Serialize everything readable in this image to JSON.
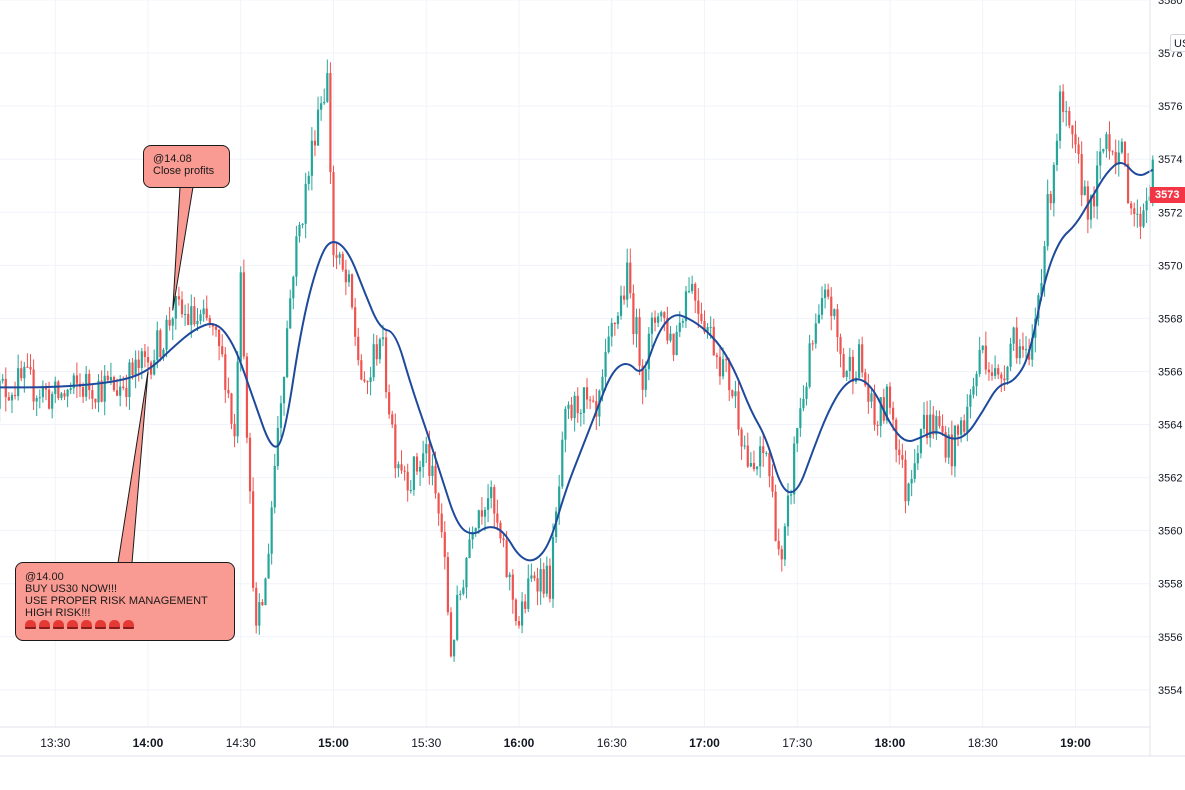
{
  "chart_data": {
    "type": "candlestick",
    "x_ticks": [
      {
        "label": "13:30",
        "major": false
      },
      {
        "label": "14:00",
        "major": true
      },
      {
        "label": "14:30",
        "major": false
      },
      {
        "label": "15:00",
        "major": true
      },
      {
        "label": "15:30",
        "major": false
      },
      {
        "label": "16:00",
        "major": true
      },
      {
        "label": "16:30",
        "major": false
      },
      {
        "label": "17:00",
        "major": true
      },
      {
        "label": "17:30",
        "major": false
      },
      {
        "label": "18:00",
        "major": true
      },
      {
        "label": "18:30",
        "major": false
      },
      {
        "label": "19:00",
        "major": true
      }
    ],
    "y_ticks": [
      "3554",
      "3556",
      "3558",
      "3560",
      "3562",
      "3564",
      "3566",
      "3568",
      "3570",
      "3572",
      "3574",
      "3576",
      "3578",
      "3580"
    ],
    "ylim": [
      3552.6,
      3580
    ],
    "x_range": [
      "13:10",
      "19:25"
    ],
    "price_path": [
      [
        "13:10",
        3565.2
      ],
      [
        "13:20",
        3565.6
      ],
      [
        "13:30",
        3565.0
      ],
      [
        "13:40",
        3565.5
      ],
      [
        "13:50",
        3565.4
      ],
      [
        "14:00",
        3566.4
      ],
      [
        "14:05",
        3567.3
      ],
      [
        "14:08",
        3568.3
      ],
      [
        "14:15",
        3567.9
      ],
      [
        "14:20",
        3567.7
      ],
      [
        "14:25",
        3566.0
      ],
      [
        "14:28",
        3563.5
      ],
      [
        "14:30",
        3570.2
      ],
      [
        "14:33",
        3561.0
      ],
      [
        "14:35",
        3556.0
      ],
      [
        "14:38",
        3558.0
      ],
      [
        "14:42",
        3564.0
      ],
      [
        "14:47",
        3570.0
      ],
      [
        "14:52",
        3573.5
      ],
      [
        "14:55",
        3576.0
      ],
      [
        "14:58",
        3577.0
      ],
      [
        "15:00",
        3570.5
      ],
      [
        "15:05",
        3569.0
      ],
      [
        "15:10",
        3565.0
      ],
      [
        "15:15",
        3567.5
      ],
      [
        "15:20",
        3563.0
      ],
      [
        "15:25",
        3562.0
      ],
      [
        "15:30",
        3563.0
      ],
      [
        "15:35",
        3560.0
      ],
      [
        "15:38",
        3555.5
      ],
      [
        "15:45",
        3560.5
      ],
      [
        "15:50",
        3561.5
      ],
      [
        "15:55",
        3559.0
      ],
      [
        "16:00",
        3556.5
      ],
      [
        "16:05",
        3558.5
      ],
      [
        "16:10",
        3558.0
      ],
      [
        "16:15",
        3564.0
      ],
      [
        "16:20",
        3565.0
      ],
      [
        "16:25",
        3564.0
      ],
      [
        "16:30",
        3567.5
      ],
      [
        "16:35",
        3569.5
      ],
      [
        "16:40",
        3566.0
      ],
      [
        "16:45",
        3568.5
      ],
      [
        "16:50",
        3567.0
      ],
      [
        "16:55",
        3569.5
      ],
      [
        "17:00",
        3568.0
      ],
      [
        "17:05",
        3566.5
      ],
      [
        "17:10",
        3565.0
      ],
      [
        "17:15",
        3562.0
      ],
      [
        "17:20",
        3563.0
      ],
      [
        "17:25",
        3558.5
      ],
      [
        "17:30",
        3564.0
      ],
      [
        "17:35",
        3567.0
      ],
      [
        "17:40",
        3569.0
      ],
      [
        "17:45",
        3566.0
      ],
      [
        "17:50",
        3566.5
      ],
      [
        "17:55",
        3564.0
      ],
      [
        "18:00",
        3565.0
      ],
      [
        "18:05",
        3561.5
      ],
      [
        "18:10",
        3564.0
      ],
      [
        "18:15",
        3564.0
      ],
      [
        "18:20",
        3563.0
      ],
      [
        "18:25",
        3564.5
      ],
      [
        "18:30",
        3567.0
      ],
      [
        "18:35",
        3565.5
      ],
      [
        "18:40",
        3567.5
      ],
      [
        "18:45",
        3566.0
      ],
      [
        "18:50",
        3571.0
      ],
      [
        "18:55",
        3576.0
      ],
      [
        "19:00",
        3574.0
      ],
      [
        "19:05",
        3572.0
      ],
      [
        "19:10",
        3575.0
      ],
      [
        "19:15",
        3574.0
      ],
      [
        "19:20",
        3571.5
      ],
      [
        "19:25",
        3573.5
      ]
    ],
    "moving_average": {
      "color": "#1e4a9c",
      "points": [
        [
          "13:10",
          3565.4
        ],
        [
          "13:30",
          3565.4
        ],
        [
          "13:50",
          3565.6
        ],
        [
          "14:00",
          3566.0
        ],
        [
          "14:08",
          3566.9
        ],
        [
          "14:15",
          3567.6
        ],
        [
          "14:22",
          3567.9
        ],
        [
          "14:28",
          3567.0
        ],
        [
          "14:34",
          3565.0
        ],
        [
          "14:40",
          3563.0
        ],
        [
          "14:44",
          3563.4
        ],
        [
          "14:50",
          3568.0
        ],
        [
          "14:56",
          3570.5
        ],
        [
          "15:00",
          3571.0
        ],
        [
          "15:05",
          3570.5
        ],
        [
          "15:10",
          3569.0
        ],
        [
          "15:15",
          3567.6
        ],
        [
          "15:20",
          3567.5
        ],
        [
          "15:25",
          3565.5
        ],
        [
          "15:30",
          3563.8
        ],
        [
          "15:35",
          3562.0
        ],
        [
          "15:40",
          3560.2
        ],
        [
          "15:45",
          3559.8
        ],
        [
          "15:50",
          3560.2
        ],
        [
          "15:55",
          3560.0
        ],
        [
          "16:00",
          3559.0
        ],
        [
          "16:05",
          3558.8
        ],
        [
          "16:10",
          3559.5
        ],
        [
          "16:15",
          3561.5
        ],
        [
          "16:20",
          3563.0
        ],
        [
          "16:25",
          3564.5
        ],
        [
          "16:30",
          3566.0
        ],
        [
          "16:35",
          3566.4
        ],
        [
          "16:40",
          3565.8
        ],
        [
          "16:45",
          3567.5
        ],
        [
          "16:50",
          3568.2
        ],
        [
          "16:55",
          3568.0
        ],
        [
          "17:00",
          3567.6
        ],
        [
          "17:05",
          3567.0
        ],
        [
          "17:10",
          3566.0
        ],
        [
          "17:15",
          3564.5
        ],
        [
          "17:20",
          3563.5
        ],
        [
          "17:25",
          3561.5
        ],
        [
          "17:30",
          3561.4
        ],
        [
          "17:35",
          3563.0
        ],
        [
          "17:40",
          3564.5
        ],
        [
          "17:45",
          3565.5
        ],
        [
          "17:50",
          3565.8
        ],
        [
          "17:55",
          3565.3
        ],
        [
          "18:00",
          3564.0
        ],
        [
          "18:05",
          3563.3
        ],
        [
          "18:10",
          3563.5
        ],
        [
          "18:15",
          3563.8
        ],
        [
          "18:20",
          3563.4
        ],
        [
          "18:25",
          3563.6
        ],
        [
          "18:30",
          3564.5
        ],
        [
          "18:35",
          3565.5
        ],
        [
          "18:40",
          3565.6
        ],
        [
          "18:45",
          3566.5
        ],
        [
          "18:50",
          3569.5
        ],
        [
          "18:55",
          3571.0
        ],
        [
          "19:00",
          3571.5
        ],
        [
          "19:05",
          3572.5
        ],
        [
          "19:10",
          3573.5
        ],
        [
          "19:15",
          3574.0
        ],
        [
          "19:20",
          3573.3
        ],
        [
          "19:25",
          3573.6
        ]
      ]
    },
    "colors": {
      "up": "#26a69a",
      "down": "#ef5350",
      "grid": "#f0f3fa",
      "last_price": "#f23645"
    },
    "annotations": [
      {
        "id": "close",
        "at": [
          "14:08",
          3568.3
        ],
        "lines": [
          "@14.08",
          "Close profits"
        ]
      },
      {
        "id": "buy",
        "at": [
          "14:00",
          3566.0
        ],
        "lines": [
          "@14.00",
          "BUY US30 NOW!!!",
          "USE PROPER RISK MANAGEMENT",
          "HIGH RISK!!!"
        ],
        "emoji_count": 8
      }
    ],
    "symbol_label": "US",
    "last_price_label": "3573"
  }
}
